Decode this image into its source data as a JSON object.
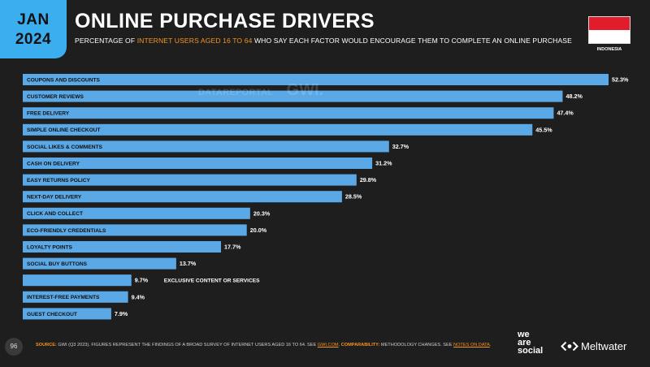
{
  "header": {
    "month": "JAN",
    "year": "2024",
    "title": "ONLINE PURCHASE DRIVERS",
    "subtitle_pre": "PERCENTAGE OF ",
    "subtitle_highlight": "INTERNET USERS AGED 16 TO 64",
    "subtitle_post": " WHO SAY EACH FACTOR WOULD ENCOURAGE THEM TO COMPLETE AN ONLINE PURCHASE",
    "country": "INDONESIA"
  },
  "watermark": {
    "left": "DATAREPORTAL",
    "right": "GWI."
  },
  "colors": {
    "bar": "#5aa9e6",
    "accent": "#f7941d",
    "badge": "#3aaeee",
    "background": "#1e1e1e"
  },
  "chart_data": {
    "type": "bar",
    "orientation": "horizontal",
    "categories": [
      "COUPONS AND DISCOUNTS",
      "CUSTOMER REVIEWS",
      "FREE DELIVERY",
      "SIMPLE ONLINE CHECKOUT",
      "SOCIAL LIKES & COMMENTS",
      "CASH ON DELIVERY",
      "EASY RETURNS POLICY",
      "NEXT-DAY DELIVERY",
      "CLICK AND COLLECT",
      "ECO-FRIENDLY CREDENTIALS",
      "LOYALTY POINTS",
      "SOCIAL BUY BUTTONS",
      "EXCLUSIVE CONTENT OR SERVICES",
      "INTEREST-FREE PAYMENTS",
      "GUEST CHECKOUT"
    ],
    "values": [
      52.3,
      48.2,
      47.4,
      45.5,
      32.7,
      31.2,
      29.8,
      28.5,
      20.3,
      20.0,
      17.7,
      13.7,
      9.7,
      9.4,
      7.9
    ],
    "value_labels": [
      "52.3%",
      "48.2%",
      "47.4%",
      "45.5%",
      "32.7%",
      "31.2%",
      "29.8%",
      "28.5%",
      "20.3%",
      "20.0%",
      "17.7%",
      "13.7%",
      "9.7%",
      "9.4%",
      "7.9%"
    ],
    "xlim": [
      0,
      52.3
    ]
  },
  "footer": {
    "page": "96",
    "source_label": "SOURCE:",
    "source_text": " GWI (Q3 2023). FIGURES REPRESENT THE FINDINGS OF A BROAD SURVEY OF INTERNET USERS AGED 16 TO 64. SEE ",
    "source_link": "GWI.COM",
    "comparability_label": "COMPARABILITY:",
    "comparability_text": " METHODOLOGY CHANGES. SEE ",
    "comparability_link": "NOTES ON DATA",
    "brand_we": "we",
    "brand_are": "are",
    "brand_social": "social",
    "brand_meltwater": "Meltwater"
  }
}
